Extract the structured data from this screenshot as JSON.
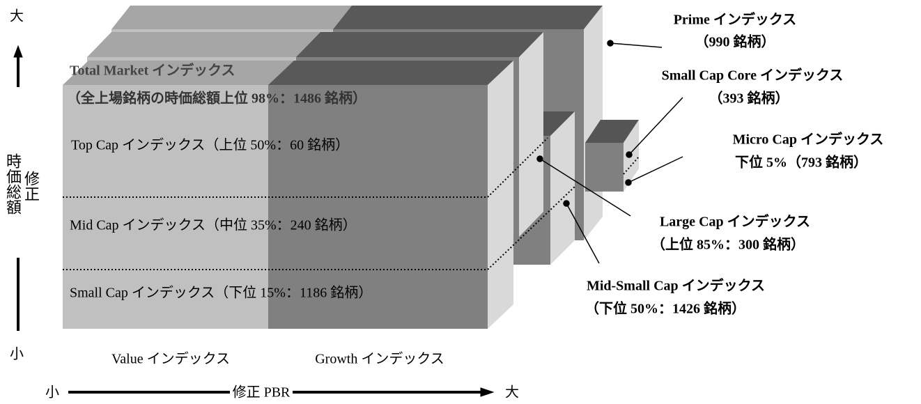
{
  "axis": {
    "y_high": "大",
    "y_low": "小",
    "y_label_1": "時価総額",
    "y_label_2": "修正",
    "x_low": "小",
    "x_label": "修正 PBR",
    "x_high": "大"
  },
  "columns": [
    "Value インデックス",
    "Growth インデックス"
  ],
  "front": {
    "title": "Total Market インデックス",
    "subtitle": "（全上場銘柄の時価総額上位 98%：1486 銘柄）",
    "rows": [
      "Top Cap インデックス（上位 50%：60 銘柄）",
      "Mid Cap インデックス（中位 35%：240 銘柄）",
      "Small Cap インデックス（下位 15%：1186 銘柄）"
    ]
  },
  "labels": [
    {
      "name": "Prime インデックス",
      "detail": "（990 銘柄）"
    },
    {
      "name": "Small Cap Core インデックス",
      "detail": "（393 銘柄）"
    },
    {
      "name": "Micro Cap インデックス",
      "detail": "下位 5%（793 銘柄）"
    },
    {
      "name": "Large Cap インデックス",
      "detail": "（上位 85%：300 銘柄）"
    },
    {
      "name": "Mid-Small Cap インデックス",
      "detail": "（下位 50%：1426 銘柄）"
    }
  ]
}
